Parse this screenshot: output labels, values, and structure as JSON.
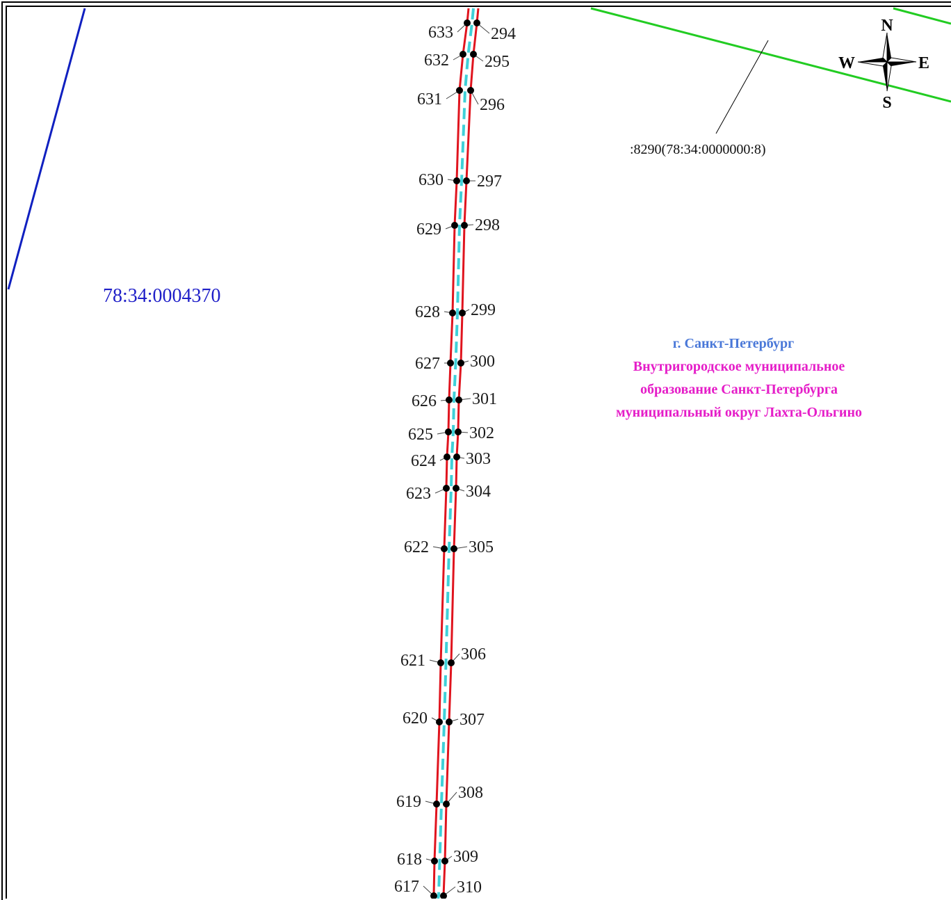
{
  "parcel": {
    "number": "78:34:0004370",
    "color": "#1f1fc8"
  },
  "cadastral_ref": {
    "label": ":8290(78:34:0000000:8)"
  },
  "admin": {
    "city": "г. Санкт-Петербург",
    "lines": [
      "Внутригородское муниципальное",
      "образование Санкт-Петербурга",
      "муниципальный округ Лахта-Ольгино"
    ],
    "city_color": "#4a78d8",
    "lines_color": "#e51ec8"
  },
  "compass": {
    "north": "N",
    "south": "S",
    "west": "W",
    "east": "E",
    "icon": "compass-rose-icon"
  },
  "colors": {
    "corridor": "#e0141e",
    "centerline": "#3fd0d8",
    "boundary_blue": "#1020c0",
    "boundary_green": "#22cc22"
  },
  "point_pairs": [
    {
      "left": "633",
      "right": "294"
    },
    {
      "left": "632",
      "right": "295"
    },
    {
      "left": "631",
      "right": "296"
    },
    {
      "left": "630",
      "right": "297"
    },
    {
      "left": "629",
      "right": "298"
    },
    {
      "left": "628",
      "right": "299"
    },
    {
      "left": "627",
      "right": "300"
    },
    {
      "left": "626",
      "right": "301"
    },
    {
      "left": "625",
      "right": "302"
    },
    {
      "left": "624",
      "right": "303"
    },
    {
      "left": "623",
      "right": "304"
    },
    {
      "left": "622",
      "right": "305"
    },
    {
      "left": "621",
      "right": "306"
    },
    {
      "left": "620",
      "right": "307"
    },
    {
      "left": "619",
      "right": "308"
    },
    {
      "left": "618",
      "right": "309"
    },
    {
      "left": "617",
      "right": "310"
    }
  ]
}
